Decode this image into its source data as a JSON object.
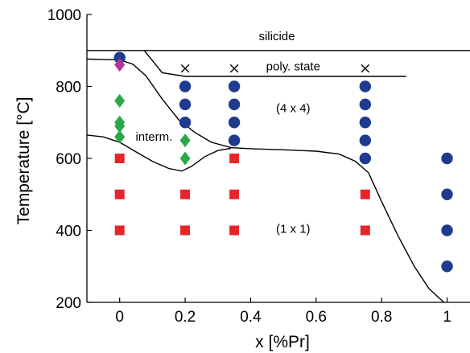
{
  "chart_data": {
    "type": "scatter",
    "title": "",
    "xlabel": "x [%Pr]",
    "ylabel": "Temperature [°C]",
    "xlim": [
      -0.1,
      1.07
    ],
    "ylim": [
      200,
      1000
    ],
    "xticks": [
      0,
      0.2,
      0.4,
      0.6,
      0.8,
      1
    ],
    "yticks": [
      200,
      400,
      600,
      800,
      1000
    ],
    "xtick_labels": [
      "0",
      "0.2",
      "0.4",
      "0.6",
      "0.8",
      "1"
    ],
    "ytick_labels": [
      "200",
      "400",
      "600",
      "800",
      "1000"
    ],
    "grid": false,
    "legend": "none",
    "series": [
      {
        "marker": "circle",
        "color": "#1f3b8f",
        "points": [
          [
            0,
            880
          ],
          [
            0.2,
            800
          ],
          [
            0.2,
            750
          ],
          [
            0.2,
            700
          ],
          [
            0.35,
            800
          ],
          [
            0.35,
            750
          ],
          [
            0.35,
            700
          ],
          [
            0.35,
            650
          ],
          [
            0.75,
            800
          ],
          [
            0.75,
            750
          ],
          [
            0.75,
            700
          ],
          [
            0.75,
            650
          ],
          [
            0.75,
            600
          ],
          [
            1,
            600
          ],
          [
            1,
            500
          ],
          [
            1,
            400
          ],
          [
            1,
            300
          ]
        ]
      },
      {
        "marker": "square",
        "color": "#e8242b",
        "points": [
          [
            0,
            600
          ],
          [
            0,
            500
          ],
          [
            0,
            400
          ],
          [
            0.2,
            500
          ],
          [
            0.2,
            400
          ],
          [
            0.35,
            600
          ],
          [
            0.35,
            500
          ],
          [
            0.35,
            400
          ],
          [
            0.75,
            500
          ],
          [
            0.75,
            400
          ]
        ]
      },
      {
        "marker": "diamond",
        "color": "#2aa84a",
        "points": [
          [
            0,
            760
          ],
          [
            0,
            700
          ],
          [
            0,
            690
          ],
          [
            0,
            660
          ],
          [
            0.2,
            650
          ],
          [
            0.2,
            600
          ]
        ]
      },
      {
        "marker": "diamond",
        "color": "#b3349a",
        "points": [
          [
            0,
            860
          ]
        ]
      },
      {
        "marker": "cross",
        "color": "#000000",
        "points": [
          [
            0.2,
            850
          ],
          [
            0.35,
            850
          ],
          [
            0.75,
            850
          ]
        ]
      }
    ],
    "boundaries": [
      {
        "points": [
          [
            -0.1,
            900
          ],
          [
            1.07,
            900
          ]
        ]
      },
      {
        "points": [
          [
            0.075,
            900
          ],
          [
            0.13,
            838
          ],
          [
            0.2,
            828
          ],
          [
            0.875,
            828
          ]
        ]
      },
      {
        "points": [
          [
            -0.1,
            876
          ],
          [
            0,
            874
          ],
          [
            0.04,
            862
          ],
          [
            0.08,
            830
          ],
          [
            0.13,
            765
          ],
          [
            0.18,
            708
          ],
          [
            0.23,
            672
          ],
          [
            0.28,
            645
          ],
          [
            0.34,
            630
          ],
          [
            0.4,
            627
          ],
          [
            0.5,
            624
          ],
          [
            0.6,
            620
          ],
          [
            0.67,
            612
          ],
          [
            0.72,
            592
          ],
          [
            0.76,
            560
          ],
          [
            0.8,
            480
          ],
          [
            0.85,
            385
          ],
          [
            0.9,
            300
          ],
          [
            0.945,
            238
          ],
          [
            0.99,
            200
          ]
        ]
      },
      {
        "points": [
          [
            -0.1,
            665
          ],
          [
            -0.05,
            660
          ],
          [
            0,
            645
          ],
          [
            0.05,
            618
          ],
          [
            0.1,
            592
          ],
          [
            0.15,
            572
          ],
          [
            0.19,
            565
          ],
          [
            0.22,
            578
          ],
          [
            0.26,
            605
          ],
          [
            0.3,
            622
          ],
          [
            0.34,
            628
          ]
        ]
      }
    ],
    "annotations": [
      {
        "text": "silicide",
        "x": 0.48,
        "y": 940
      },
      {
        "text": "poly. state",
        "x": 0.53,
        "y": 856
      },
      {
        "text": "(4 x 4)",
        "x": 0.53,
        "y": 740
      },
      {
        "text": "interm.",
        "x": 0.105,
        "y": 660
      },
      {
        "text": "(1 x 1)",
        "x": 0.53,
        "y": 405
      }
    ]
  }
}
